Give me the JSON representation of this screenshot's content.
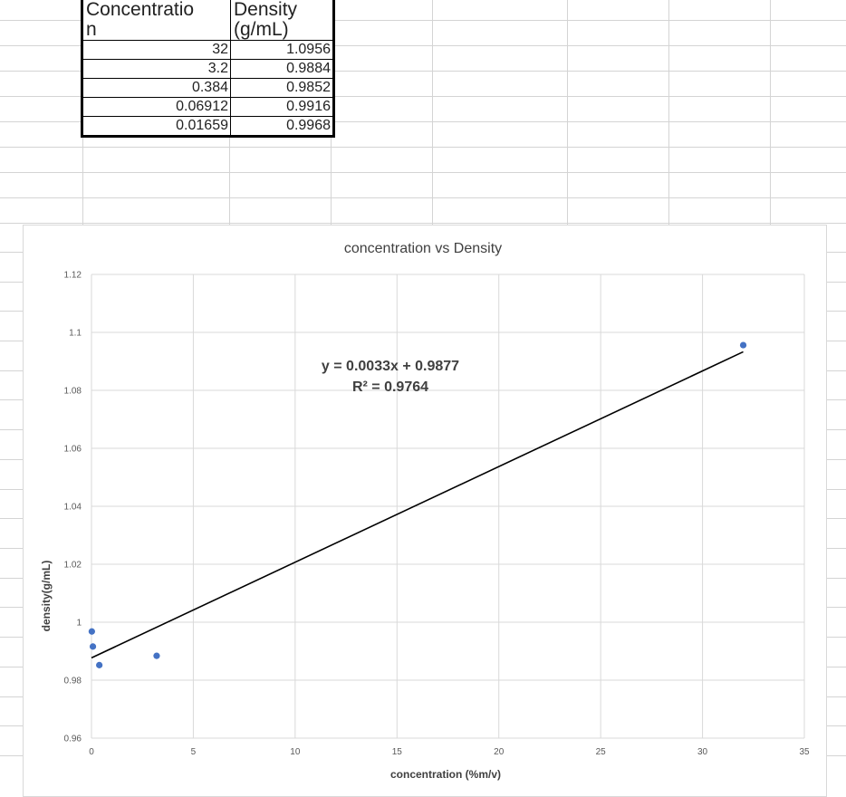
{
  "table": {
    "header_concentration": "Concentratio\nn",
    "header_density": "Density\n(g/mL)",
    "rows": [
      {
        "concentration": "32",
        "density": "1.0956"
      },
      {
        "concentration": "3.2",
        "density": "0.9884"
      },
      {
        "concentration": "0.384",
        "density": "0.9852"
      },
      {
        "concentration": "0.06912",
        "density": "0.9916"
      },
      {
        "concentration": "0.01659",
        "density": "0.9968"
      }
    ]
  },
  "chart_data": {
    "type": "scatter",
    "title": "concentration vs Density",
    "xlabel": "concentration (%m/v)",
    "ylabel": "density(g/mL)",
    "xlim": [
      0,
      35
    ],
    "ylim": [
      0.96,
      1.12
    ],
    "x_ticks": [
      "0",
      "5",
      "10",
      "15",
      "20",
      "25",
      "30",
      "35"
    ],
    "y_ticks": [
      "0.96",
      "0.98",
      "1",
      "1.02",
      "1.04",
      "1.06",
      "1.08",
      "1.1",
      "1.12"
    ],
    "grid": true,
    "marker_color": "#4472C4",
    "trendline_color": "#000000",
    "points": [
      {
        "x": 32,
        "y": 1.0956
      },
      {
        "x": 3.2,
        "y": 0.9884
      },
      {
        "x": 0.384,
        "y": 0.9852
      },
      {
        "x": 0.06912,
        "y": 0.9916
      },
      {
        "x": 0.01659,
        "y": 0.9968
      }
    ],
    "trendline": {
      "slope": 0.0033,
      "intercept": 0.9877,
      "x_range": [
        0,
        32
      ]
    },
    "equation_label": "y = 0.0033x + 0.9877",
    "r2_label": "R² = 0.9764"
  }
}
